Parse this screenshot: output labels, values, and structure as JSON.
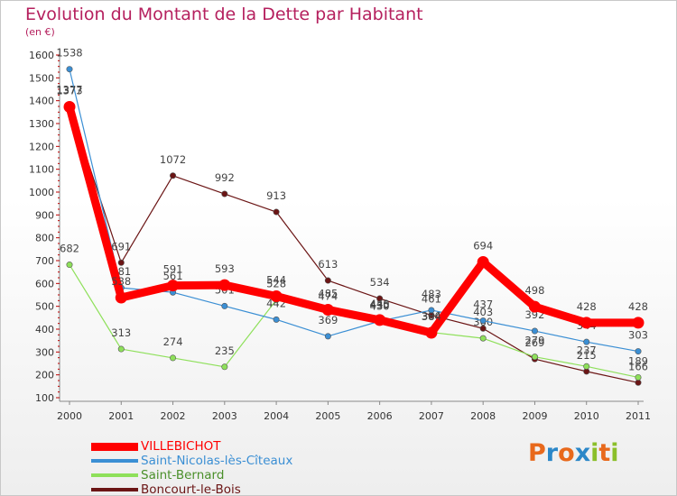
{
  "title": "Evolution du Montant de la Dette par Habitant",
  "unit_label": "(en €)",
  "brand": {
    "letters": [
      "P",
      "r",
      "o",
      "x",
      "i",
      "t",
      "i"
    ],
    "colors": [
      "#e8691c",
      "#2b87c8",
      "#e8691c",
      "#2b87c8",
      "#8bbf2a",
      "#e8691c",
      "#8bbf2a"
    ]
  },
  "chart_data": {
    "type": "line",
    "x": [
      "2000",
      "2001",
      "2002",
      "2003",
      "2004",
      "2005",
      "2006",
      "2007",
      "2008",
      "2009",
      "2010",
      "2011"
    ],
    "yticks": [
      100,
      200,
      300,
      400,
      500,
      600,
      700,
      800,
      900,
      1000,
      1100,
      1200,
      1300,
      1400,
      1500,
      1600
    ],
    "ylim": [
      100,
      1600
    ],
    "grid": false,
    "legend_position": "bottom-left",
    "series": [
      {
        "name": "VILLEBICHOT",
        "color": "#ff0000",
        "values": [
          1373,
          538,
          591,
          593,
          544,
          485,
          440,
          384,
          694,
          498,
          428,
          428
        ],
        "labels": [
          "1373",
          "538",
          "591",
          "593",
          "544",
          "485",
          "440",
          "384",
          "694",
          "498",
          "428",
          "428"
        ]
      },
      {
        "name": "Saint-Nicolas-lès-Cîteaux",
        "color": "#3b8fd4",
        "values": [
          1538,
          581,
          561,
          501,
          442,
          369,
          435,
          483,
          437,
          392,
          344,
          303
        ],
        "labels": [
          "1538",
          "581",
          "561",
          "501",
          "442",
          "369",
          "435",
          "483",
          "437",
          "392",
          "344",
          "303"
        ]
      },
      {
        "name": "Saint-Bernard",
        "color": "#8ee05a",
        "values": [
          682,
          313,
          274,
          235,
          528,
          474,
          430,
          386,
          360,
          279,
          237,
          189
        ],
        "labels": [
          "682",
          "313",
          "274",
          "235",
          "528",
          "474",
          "430",
          "386",
          "360",
          "279",
          "237",
          "189"
        ]
      },
      {
        "name": "Boncourt-le-Bois",
        "color": "#6b1515",
        "values": [
          1377,
          691,
          1072,
          992,
          913,
          613,
          534,
          461,
          403,
          269,
          215,
          166
        ],
        "labels": [
          "1377",
          "691",
          "1072",
          "992",
          "913",
          "613",
          "534",
          "461",
          "403",
          "269",
          "215",
          "166"
        ]
      }
    ]
  }
}
